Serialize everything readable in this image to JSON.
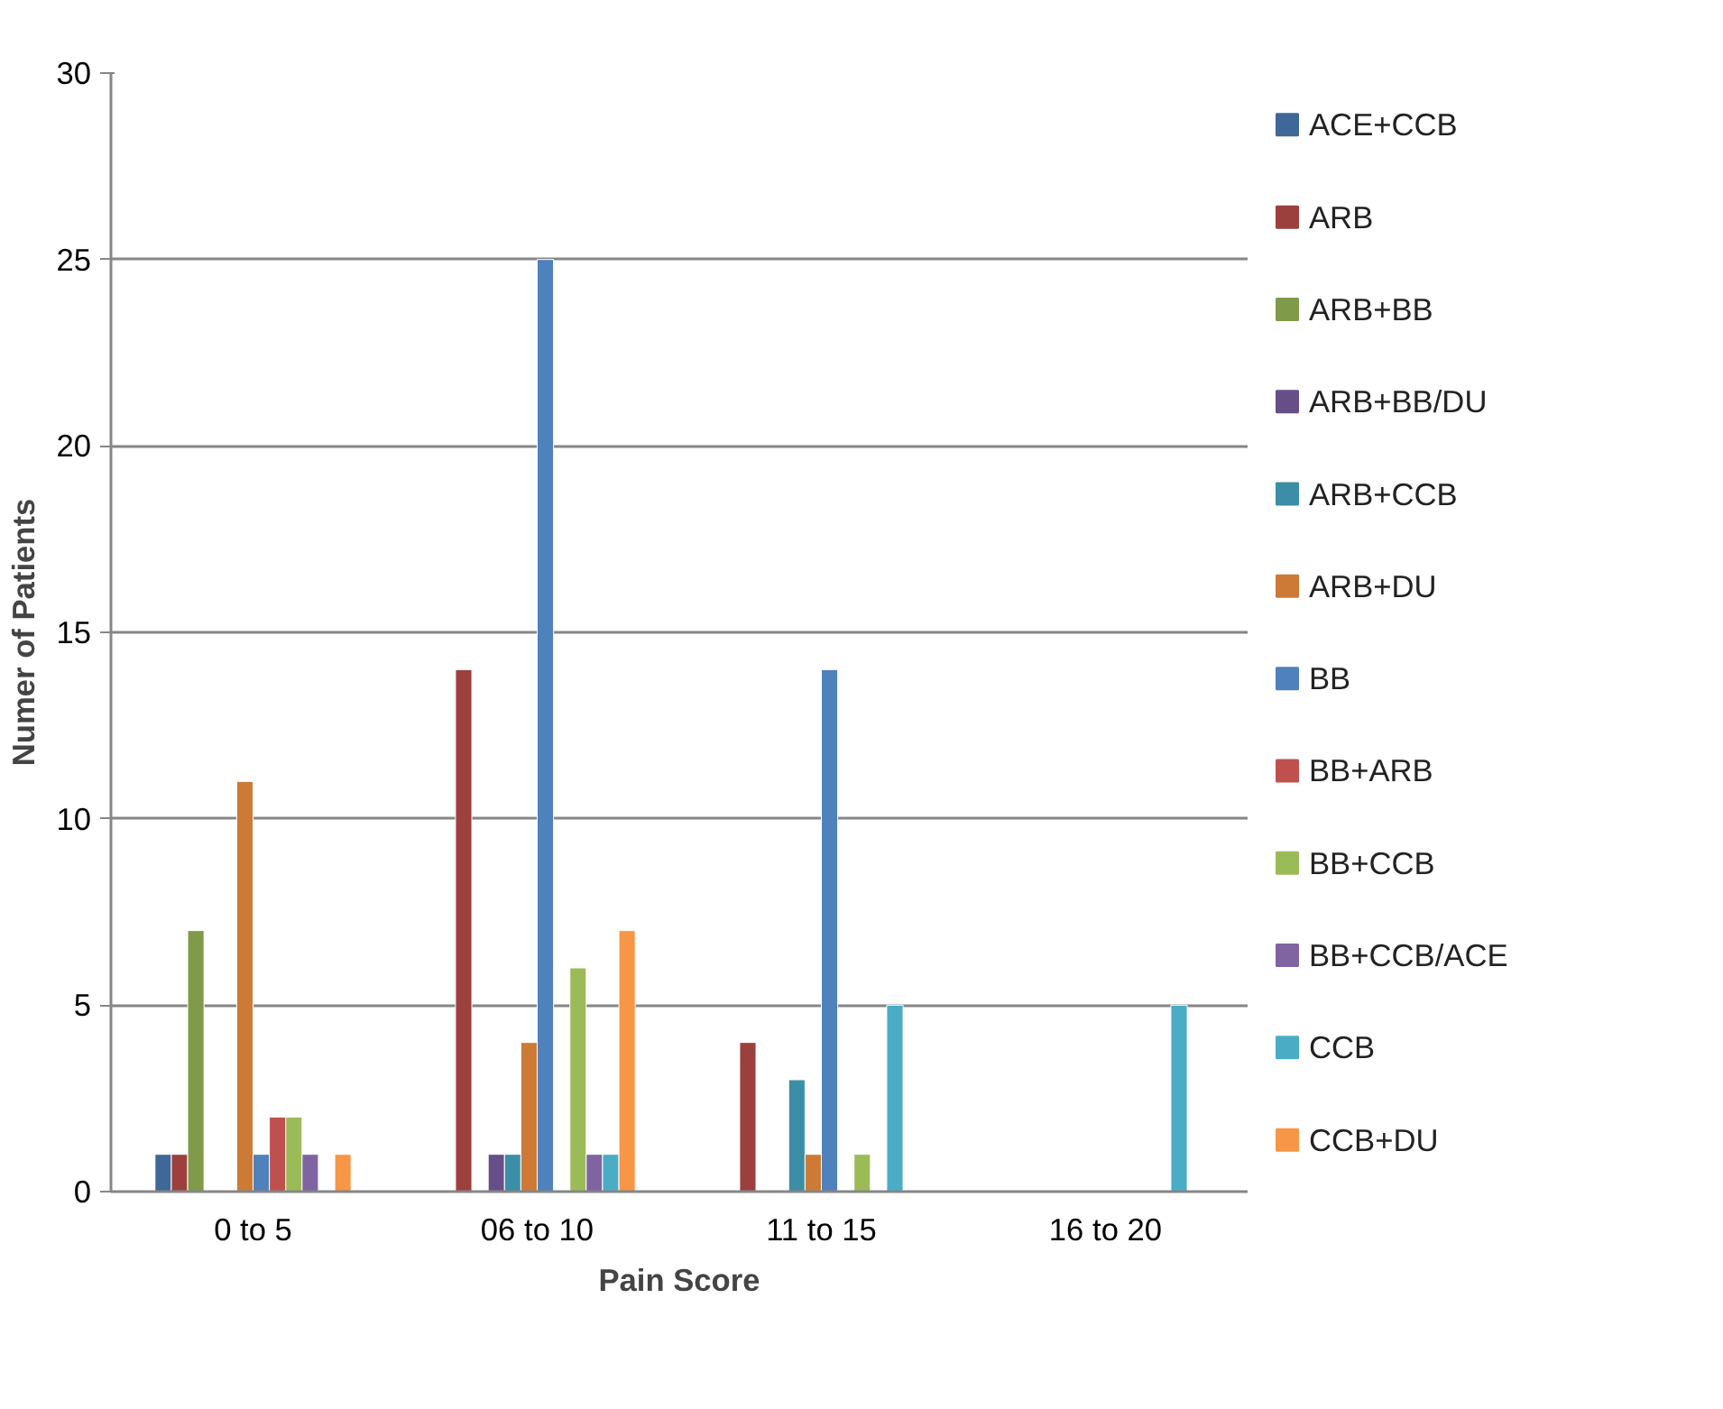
{
  "chart_data": {
    "type": "bar",
    "xlabel": "Pain Score",
    "ylabel": "Numer of Patients",
    "categories": [
      "0 to 5",
      "06 to 10",
      "11 to 15",
      "16 to 20"
    ],
    "series": [
      {
        "name": "ACE+CCB",
        "color": "#3f6797",
        "values": [
          1,
          null,
          null,
          null
        ]
      },
      {
        "name": "ARB",
        "color": "#9c403d",
        "values": [
          1,
          14,
          4,
          null
        ]
      },
      {
        "name": "ARB+BB",
        "color": "#7f9a48",
        "values": [
          7,
          null,
          null,
          null
        ]
      },
      {
        "name": "ARB+BB/DU",
        "color": "#664f87",
        "values": [
          null,
          1,
          null,
          null
        ]
      },
      {
        "name": "ARB+CCB",
        "color": "#3b8ea5",
        "values": [
          null,
          1,
          3,
          null
        ]
      },
      {
        "name": "ARB+DU",
        "color": "#cc7a36",
        "values": [
          11,
          4,
          1,
          null
        ]
      },
      {
        "name": "BB",
        "color": "#4f81bd",
        "values": [
          1,
          25,
          14,
          null
        ]
      },
      {
        "name": "BB+ARB",
        "color": "#c0504d",
        "values": [
          2,
          null,
          null,
          null
        ]
      },
      {
        "name": "BB+CCB",
        "color": "#9bbb59",
        "values": [
          2,
          6,
          1,
          null
        ]
      },
      {
        "name": "BB+CCB/ACE",
        "color": "#8064a2",
        "values": [
          1,
          1,
          null,
          null
        ]
      },
      {
        "name": "CCB",
        "color": "#4bacc6",
        "values": [
          null,
          1,
          5,
          5
        ]
      },
      {
        "name": "CCB+DU",
        "color": "#f79646",
        "values": [
          1,
          7,
          null,
          null
        ]
      }
    ],
    "ylim": [
      0,
      30
    ],
    "yticks": [
      0,
      5,
      10,
      15,
      20,
      25,
      30
    ],
    "grid": "y",
    "legend": "right"
  }
}
